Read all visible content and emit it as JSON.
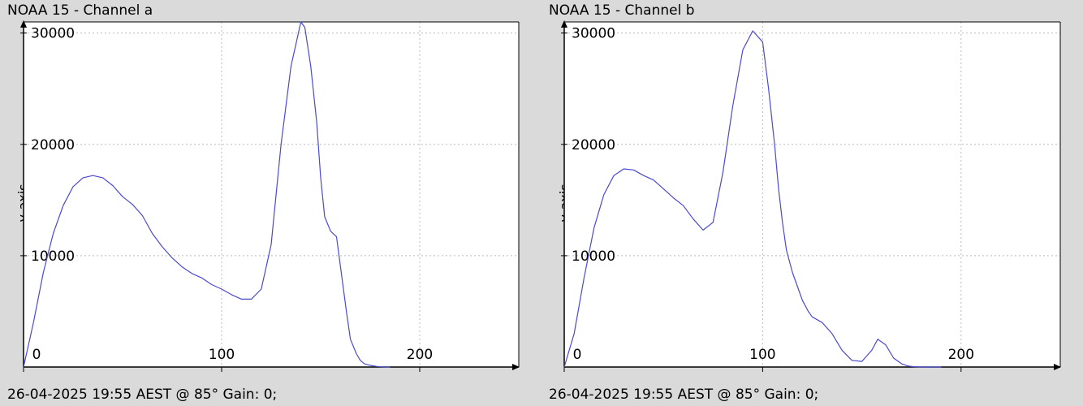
{
  "chart_data": [
    {
      "type": "line",
      "title": "NOAA 15 - Channel a",
      "footer": "26-04-2025 19:55 AEST @ 85° Gain: 0;",
      "xlabel": "",
      "ylabel": "y-axis",
      "xlim": [
        0,
        250
      ],
      "ylim": [
        0,
        31000
      ],
      "xticks": [
        0,
        100,
        200
      ],
      "yticks": [
        10000,
        20000,
        30000
      ],
      "grid": true,
      "color": "#4a4ad0",
      "series": [
        {
          "x": [
            0,
            5,
            10,
            15,
            20,
            25,
            30,
            35,
            40,
            45,
            50,
            55,
            60,
            65,
            70,
            75,
            80,
            85,
            90,
            95,
            100,
            105,
            110,
            115,
            120,
            125,
            130,
            135,
            140,
            142,
            145,
            148,
            150,
            152,
            155,
            158,
            160,
            163,
            165,
            168,
            170,
            172,
            175,
            178,
            180,
            185
          ],
          "y": [
            0,
            4000,
            8500,
            12000,
            14500,
            16200,
            17000,
            17200,
            17000,
            16300,
            15300,
            14600,
            13600,
            12000,
            10800,
            9800,
            9000,
            8400,
            8000,
            7400,
            7000,
            6500,
            6100,
            6100,
            7000,
            11000,
            20000,
            27000,
            31000,
            30500,
            27000,
            22000,
            17000,
            13500,
            12200,
            11700,
            9000,
            5000,
            2500,
            1200,
            600,
            300,
            150,
            60,
            20,
            0
          ]
        }
      ]
    },
    {
      "type": "line",
      "title": "NOAA 15 - Channel b",
      "footer": "26-04-2025 19:55 AEST @ 85° Gain: 0;",
      "xlabel": "",
      "ylabel": "y-axis",
      "xlim": [
        0,
        250
      ],
      "ylim": [
        0,
        31000
      ],
      "xticks": [
        0,
        100,
        200
      ],
      "yticks": [
        10000,
        20000,
        30000
      ],
      "grid": true,
      "color": "#4a4ad0",
      "series": [
        {
          "x": [
            0,
            5,
            10,
            15,
            20,
            25,
            30,
            35,
            40,
            45,
            50,
            55,
            60,
            65,
            70,
            75,
            80,
            85,
            90,
            95,
            100,
            103,
            106,
            108,
            110,
            112,
            115,
            118,
            120,
            123,
            125,
            130,
            135,
            140,
            145,
            150,
            155,
            158,
            162,
            166,
            170,
            173,
            176,
            180,
            185,
            190
          ],
          "y": [
            0,
            3000,
            8000,
            12500,
            15500,
            17200,
            17800,
            17700,
            17200,
            16800,
            16000,
            15200,
            14500,
            13300,
            12300,
            13000,
            17500,
            23500,
            28500,
            30200,
            29200,
            25000,
            20000,
            16000,
            13000,
            10500,
            8500,
            7000,
            6000,
            5000,
            4500,
            4000,
            3000,
            1500,
            600,
            500,
            1500,
            2500,
            2000,
            800,
            300,
            100,
            30,
            0,
            0,
            0
          ]
        }
      ]
    }
  ]
}
